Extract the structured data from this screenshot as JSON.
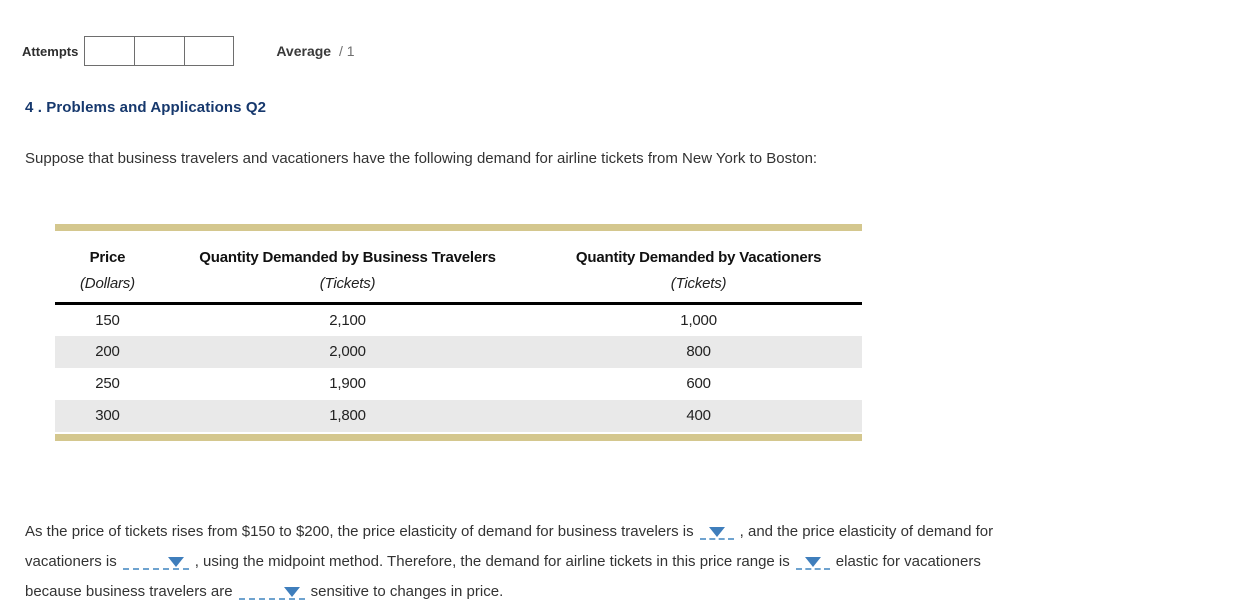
{
  "header": {
    "attempts_label": "Attempts",
    "attempts_box_count": 3,
    "average_label": "Average",
    "average_score": "/ 1"
  },
  "question": {
    "title": "4 . Problems and Applications Q2",
    "intro": "Suppose that business travelers and vacationers have the following demand for airline tickets from New York to Boston:"
  },
  "table": {
    "columns": [
      {
        "label": "Price",
        "unit": "(Dollars)"
      },
      {
        "label": "Quantity Demanded by Business Travelers",
        "unit": "(Tickets)"
      },
      {
        "label": "Quantity Demanded by Vacationers",
        "unit": "(Tickets)"
      }
    ],
    "rows": [
      [
        "150",
        "2,100",
        "1,000"
      ],
      [
        "200",
        "2,000",
        "800"
      ],
      [
        "250",
        "1,900",
        "600"
      ],
      [
        "300",
        "1,800",
        "400"
      ]
    ]
  },
  "fill_in": {
    "line1_a": "As the price of tickets rises from $150 to $200, the price elasticity of demand for business travelers is",
    "line1_b": ", and the price elasticity of demand for",
    "line2_a": "vacationers is",
    "line2_b": ", using the midpoint method. Therefore, the demand for airline tickets in this price range is",
    "line2_c": "elastic for vacationers",
    "line3_a": "because business travelers are",
    "line3_b": "sensitive to changes in price."
  },
  "colors": {
    "heading_navy": "#16386d",
    "tan_bar": "#d4c78e",
    "row_alt_gray": "#e9e9e9",
    "dropdown_triangle_blue": "#3f7ebc",
    "dropdown_underline_blue": "#6fa3cf"
  }
}
